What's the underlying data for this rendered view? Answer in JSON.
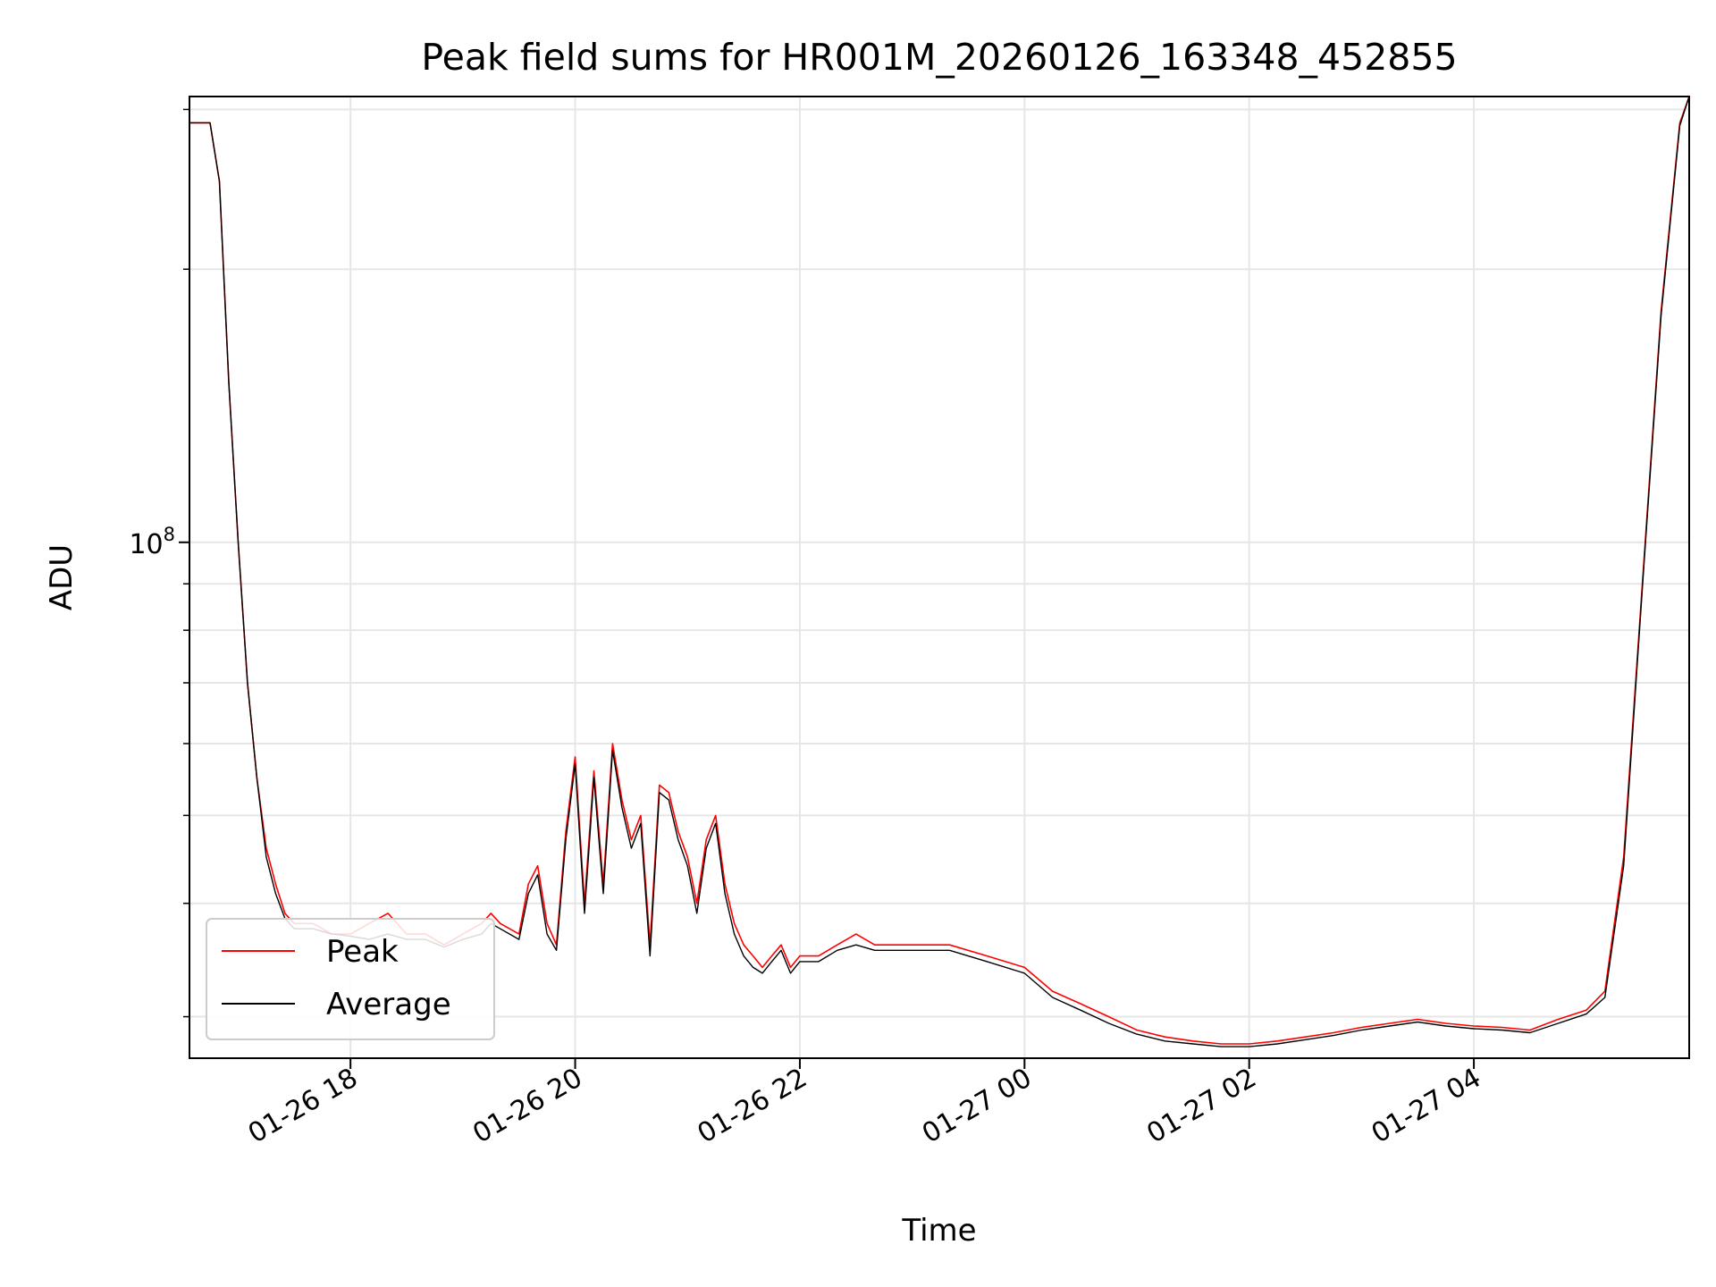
{
  "chart_data": {
    "type": "line",
    "title": "Peak field sums for HR001M_20260126_163348_452855",
    "xlabel": "Time",
    "ylabel": "ADU",
    "y_scale": "log",
    "ylim": [
      27000000,
      310000000
    ],
    "y_major_tick": {
      "value": 100000000,
      "label": "10^8",
      "base": "10",
      "exponent": "8"
    },
    "y_minor_ticks": [
      30000000,
      40000000,
      50000000,
      60000000,
      70000000,
      80000000,
      90000000,
      200000000,
      300000000
    ],
    "xlim": [
      "2026-01-26 16:34",
      "2026-01-27 05:55"
    ],
    "x_ticks": [
      {
        "value": "2026-01-26 18:00",
        "label": "01-26 18"
      },
      {
        "value": "2026-01-26 20:00",
        "label": "01-26 20"
      },
      {
        "value": "2026-01-26 22:00",
        "label": "01-26 22"
      },
      {
        "value": "2026-01-27 00:00",
        "label": "01-27 00"
      },
      {
        "value": "2026-01-27 02:00",
        "label": "01-27 02"
      },
      {
        "value": "2026-01-27 04:00",
        "label": "01-27 04"
      }
    ],
    "grid": true,
    "legend_position": "lower-left",
    "series": [
      {
        "name": "Peak",
        "color": "#ff0000",
        "x": [
          "2026-01-26 16:34",
          "2026-01-26 16:45",
          "2026-01-26 16:50",
          "2026-01-26 16:55",
          "2026-01-26 17:00",
          "2026-01-26 17:05",
          "2026-01-26 17:10",
          "2026-01-26 17:15",
          "2026-01-26 17:20",
          "2026-01-26 17:25",
          "2026-01-26 17:30",
          "2026-01-26 17:40",
          "2026-01-26 17:50",
          "2026-01-26 18:00",
          "2026-01-26 18:10",
          "2026-01-26 18:20",
          "2026-01-26 18:30",
          "2026-01-26 18:40",
          "2026-01-26 18:50",
          "2026-01-26 19:00",
          "2026-01-26 19:10",
          "2026-01-26 19:15",
          "2026-01-26 19:20",
          "2026-01-26 19:30",
          "2026-01-26 19:35",
          "2026-01-26 19:40",
          "2026-01-26 19:45",
          "2026-01-26 19:50",
          "2026-01-26 19:55",
          "2026-01-26 20:00",
          "2026-01-26 20:05",
          "2026-01-26 20:10",
          "2026-01-26 20:15",
          "2026-01-26 20:20",
          "2026-01-26 20:25",
          "2026-01-26 20:30",
          "2026-01-26 20:35",
          "2026-01-26 20:40",
          "2026-01-26 20:45",
          "2026-01-26 20:50",
          "2026-01-26 20:55",
          "2026-01-26 21:00",
          "2026-01-26 21:05",
          "2026-01-26 21:10",
          "2026-01-26 21:15",
          "2026-01-26 21:20",
          "2026-01-26 21:25",
          "2026-01-26 21:30",
          "2026-01-26 21:35",
          "2026-01-26 21:40",
          "2026-01-26 21:45",
          "2026-01-26 21:50",
          "2026-01-26 21:55",
          "2026-01-26 22:00",
          "2026-01-26 22:10",
          "2026-01-26 22:20",
          "2026-01-26 22:30",
          "2026-01-26 22:40",
          "2026-01-26 22:50",
          "2026-01-26 23:00",
          "2026-01-26 23:20",
          "2026-01-26 23:40",
          "2026-01-27 00:00",
          "2026-01-27 00:15",
          "2026-01-27 00:30",
          "2026-01-27 00:45",
          "2026-01-27 01:00",
          "2026-01-27 01:15",
          "2026-01-27 01:30",
          "2026-01-27 01:45",
          "2026-01-27 02:00",
          "2026-01-27 02:15",
          "2026-01-27 02:30",
          "2026-01-27 02:45",
          "2026-01-27 03:00",
          "2026-01-27 03:15",
          "2026-01-27 03:30",
          "2026-01-27 03:45",
          "2026-01-27 04:00",
          "2026-01-27 04:15",
          "2026-01-27 04:30",
          "2026-01-27 04:45",
          "2026-01-27 05:00",
          "2026-01-27 05:10",
          "2026-01-27 05:20",
          "2026-01-27 05:30",
          "2026-01-27 05:40",
          "2026-01-27 05:50",
          "2026-01-27 05:55"
        ],
        "y": [
          290000000,
          290000000,
          250000000,
          150000000,
          100000000,
          70000000,
          55000000,
          46000000,
          42000000,
          39000000,
          38000000,
          38000000,
          37000000,
          37000000,
          38000000,
          39000000,
          37000000,
          37000000,
          36000000,
          37000000,
          38000000,
          39000000,
          38000000,
          37000000,
          42000000,
          44000000,
          38000000,
          36000000,
          48000000,
          58000000,
          40000000,
          56000000,
          42000000,
          60000000,
          52000000,
          47000000,
          50000000,
          36000000,
          54000000,
          53000000,
          48000000,
          45000000,
          40000000,
          47000000,
          50000000,
          42000000,
          38000000,
          36000000,
          35000000,
          34000000,
          35000000,
          36000000,
          34000000,
          35000000,
          35000000,
          36000000,
          37000000,
          36000000,
          36000000,
          36000000,
          36000000,
          35000000,
          34000000,
          32000000,
          31000000,
          30000000,
          29000000,
          28500000,
          28200000,
          28000000,
          28000000,
          28200000,
          28500000,
          28800000,
          29200000,
          29500000,
          29800000,
          29500000,
          29300000,
          29200000,
          29000000,
          29800000,
          30500000,
          32000000,
          45000000,
          90000000,
          180000000,
          290000000,
          310000000
        ]
      },
      {
        "name": "Average",
        "color": "#000000",
        "x": [
          "2026-01-26 16:34",
          "2026-01-26 16:45",
          "2026-01-26 16:50",
          "2026-01-26 16:55",
          "2026-01-26 17:00",
          "2026-01-26 17:05",
          "2026-01-26 17:10",
          "2026-01-26 17:15",
          "2026-01-26 17:20",
          "2026-01-26 17:25",
          "2026-01-26 17:30",
          "2026-01-26 17:40",
          "2026-01-26 17:50",
          "2026-01-26 18:00",
          "2026-01-26 18:10",
          "2026-01-26 18:20",
          "2026-01-26 18:30",
          "2026-01-26 18:40",
          "2026-01-26 18:50",
          "2026-01-26 19:00",
          "2026-01-26 19:10",
          "2026-01-26 19:15",
          "2026-01-26 19:20",
          "2026-01-26 19:30",
          "2026-01-26 19:35",
          "2026-01-26 19:40",
          "2026-01-26 19:45",
          "2026-01-26 19:50",
          "2026-01-26 19:55",
          "2026-01-26 20:00",
          "2026-01-26 20:05",
          "2026-01-26 20:10",
          "2026-01-26 20:15",
          "2026-01-26 20:20",
          "2026-01-26 20:25",
          "2026-01-26 20:30",
          "2026-01-26 20:35",
          "2026-01-26 20:40",
          "2026-01-26 20:45",
          "2026-01-26 20:50",
          "2026-01-26 20:55",
          "2026-01-26 21:00",
          "2026-01-26 21:05",
          "2026-01-26 21:10",
          "2026-01-26 21:15",
          "2026-01-26 21:20",
          "2026-01-26 21:25",
          "2026-01-26 21:30",
          "2026-01-26 21:35",
          "2026-01-26 21:40",
          "2026-01-26 21:45",
          "2026-01-26 21:50",
          "2026-01-26 21:55",
          "2026-01-26 22:00",
          "2026-01-26 22:10",
          "2026-01-26 22:20",
          "2026-01-26 22:30",
          "2026-01-26 22:40",
          "2026-01-26 22:50",
          "2026-01-26 23:00",
          "2026-01-26 23:20",
          "2026-01-26 23:40",
          "2026-01-27 00:00",
          "2026-01-27 00:15",
          "2026-01-27 00:30",
          "2026-01-27 00:45",
          "2026-01-27 01:00",
          "2026-01-27 01:15",
          "2026-01-27 01:30",
          "2026-01-27 01:45",
          "2026-01-27 02:00",
          "2026-01-27 02:15",
          "2026-01-27 02:30",
          "2026-01-27 02:45",
          "2026-01-27 03:00",
          "2026-01-27 03:15",
          "2026-01-27 03:30",
          "2026-01-27 03:45",
          "2026-01-27 04:00",
          "2026-01-27 04:15",
          "2026-01-27 04:30",
          "2026-01-27 04:45",
          "2026-01-27 05:00",
          "2026-01-27 05:10",
          "2026-01-27 05:20",
          "2026-01-27 05:30",
          "2026-01-27 05:40",
          "2026-01-27 05:50",
          "2026-01-27 05:55"
        ],
        "y": [
          290000000,
          290000000,
          250000000,
          150000000,
          100000000,
          70000000,
          55000000,
          45000000,
          41000000,
          38500000,
          37500000,
          37500000,
          37000000,
          36800000,
          36500000,
          37000000,
          36500000,
          36500000,
          35800000,
          36500000,
          37000000,
          38000000,
          37500000,
          36500000,
          41000000,
          43000000,
          37000000,
          35500000,
          47000000,
          57000000,
          39000000,
          55000000,
          41000000,
          59000000,
          51000000,
          46000000,
          49000000,
          35000000,
          53000000,
          52000000,
          47000000,
          44000000,
          39000000,
          46000000,
          49000000,
          41000000,
          37000000,
          35000000,
          34000000,
          33500000,
          34500000,
          35500000,
          33500000,
          34500000,
          34500000,
          35500000,
          36000000,
          35500000,
          35500000,
          35500000,
          35500000,
          34500000,
          33500000,
          31500000,
          30500000,
          29500000,
          28700000,
          28200000,
          28000000,
          27800000,
          27800000,
          28000000,
          28300000,
          28600000,
          29000000,
          29300000,
          29600000,
          29300000,
          29100000,
          29000000,
          28800000,
          29500000,
          30200000,
          31500000,
          44000000,
          89000000,
          178000000,
          288000000,
          310000000
        ]
      }
    ]
  }
}
